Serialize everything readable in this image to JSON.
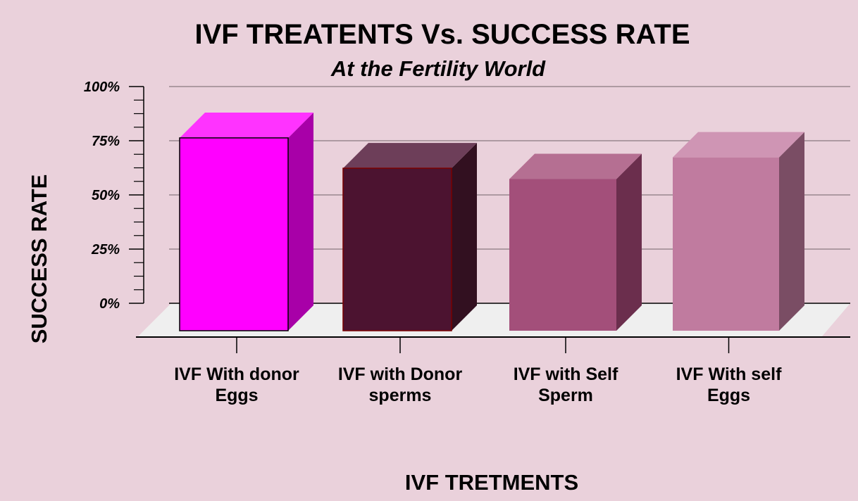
{
  "chart_data": {
    "type": "bar",
    "title": "IVF TREATENTS Vs. SUCCESS RATE",
    "subtitle": "At the Fertility World",
    "xlabel": "IVF TRETMENTS",
    "ylabel": "SUCCESS RATE",
    "categories": [
      [
        "IVF With donor",
        "Eggs"
      ],
      [
        "IVF with Donor",
        "sperms"
      ],
      [
        "IVF with Self",
        "Sperm"
      ],
      [
        "IVF With self",
        "Eggs"
      ]
    ],
    "values": [
      88,
      74,
      69,
      79
    ],
    "ylim": [
      0,
      100
    ],
    "yticks": [
      {
        "value": 100,
        "label": "100%"
      },
      {
        "value": 75,
        "label": "75%"
      },
      {
        "value": 50,
        "label": "50%"
      },
      {
        "value": 25,
        "label": "25%"
      },
      {
        "value": 0,
        "label": "0%"
      }
    ],
    "grid": true,
    "style": "3d",
    "colors": [
      {
        "front": "#ff00ff",
        "top": "#ff33ff",
        "side": "#a800a8",
        "stroke": "#000000"
      },
      {
        "front": "#4c1330",
        "top": "#6d3e59",
        "side": "#321020",
        "stroke": "#7a0000"
      },
      {
        "front": "#a34f7a",
        "top": "#b56f92",
        "side": "#6b2e4d",
        "stroke": "none"
      },
      {
        "front": "#c07b9f",
        "top": "#cf95b4",
        "side": "#7a4d64",
        "stroke": "none"
      }
    ],
    "background": "#ead1db",
    "floor_color": "#efefef",
    "grid_color": "#9a8890"
  }
}
